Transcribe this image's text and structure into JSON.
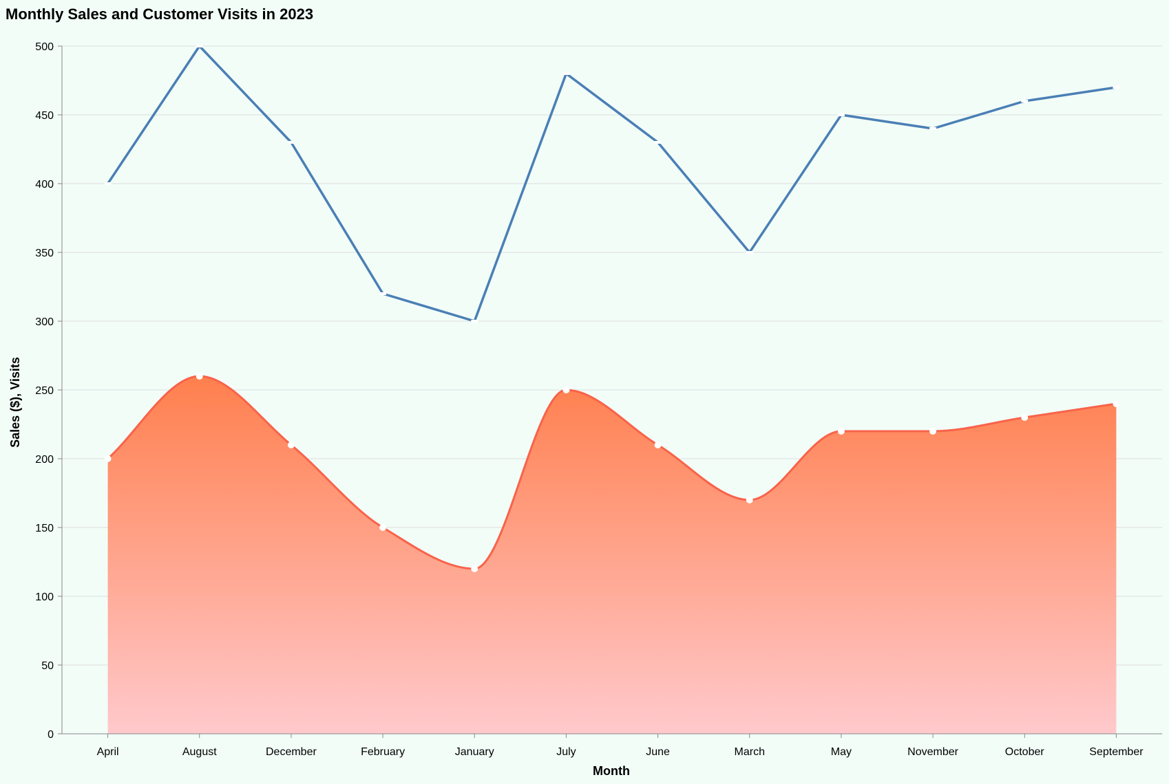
{
  "chart_data": {
    "type": "area",
    "title": "Monthly Sales and Customer Visits in 2023",
    "xlabel": "Month",
    "ylabel": "Sales ($), Visits",
    "categories": [
      "April",
      "August",
      "December",
      "February",
      "January",
      "July",
      "June",
      "March",
      "May",
      "November",
      "October",
      "September"
    ],
    "ylim": [
      0,
      500
    ],
    "yticks": [
      0,
      50,
      100,
      150,
      200,
      250,
      300,
      350,
      400,
      450,
      500
    ],
    "grid": true,
    "series": [
      {
        "mark": "line",
        "color": "#4a7fb5",
        "values": [
          400,
          500,
          430,
          320,
          300,
          480,
          430,
          350,
          450,
          440,
          460,
          470
        ]
      },
      {
        "mark": "area",
        "color": "#f8634a",
        "gradient_top": "#ff7f4d",
        "gradient_bottom": "#ffc9cc",
        "values": [
          200,
          260,
          210,
          150,
          120,
          250,
          210,
          170,
          220,
          220,
          230,
          240
        ]
      }
    ]
  }
}
